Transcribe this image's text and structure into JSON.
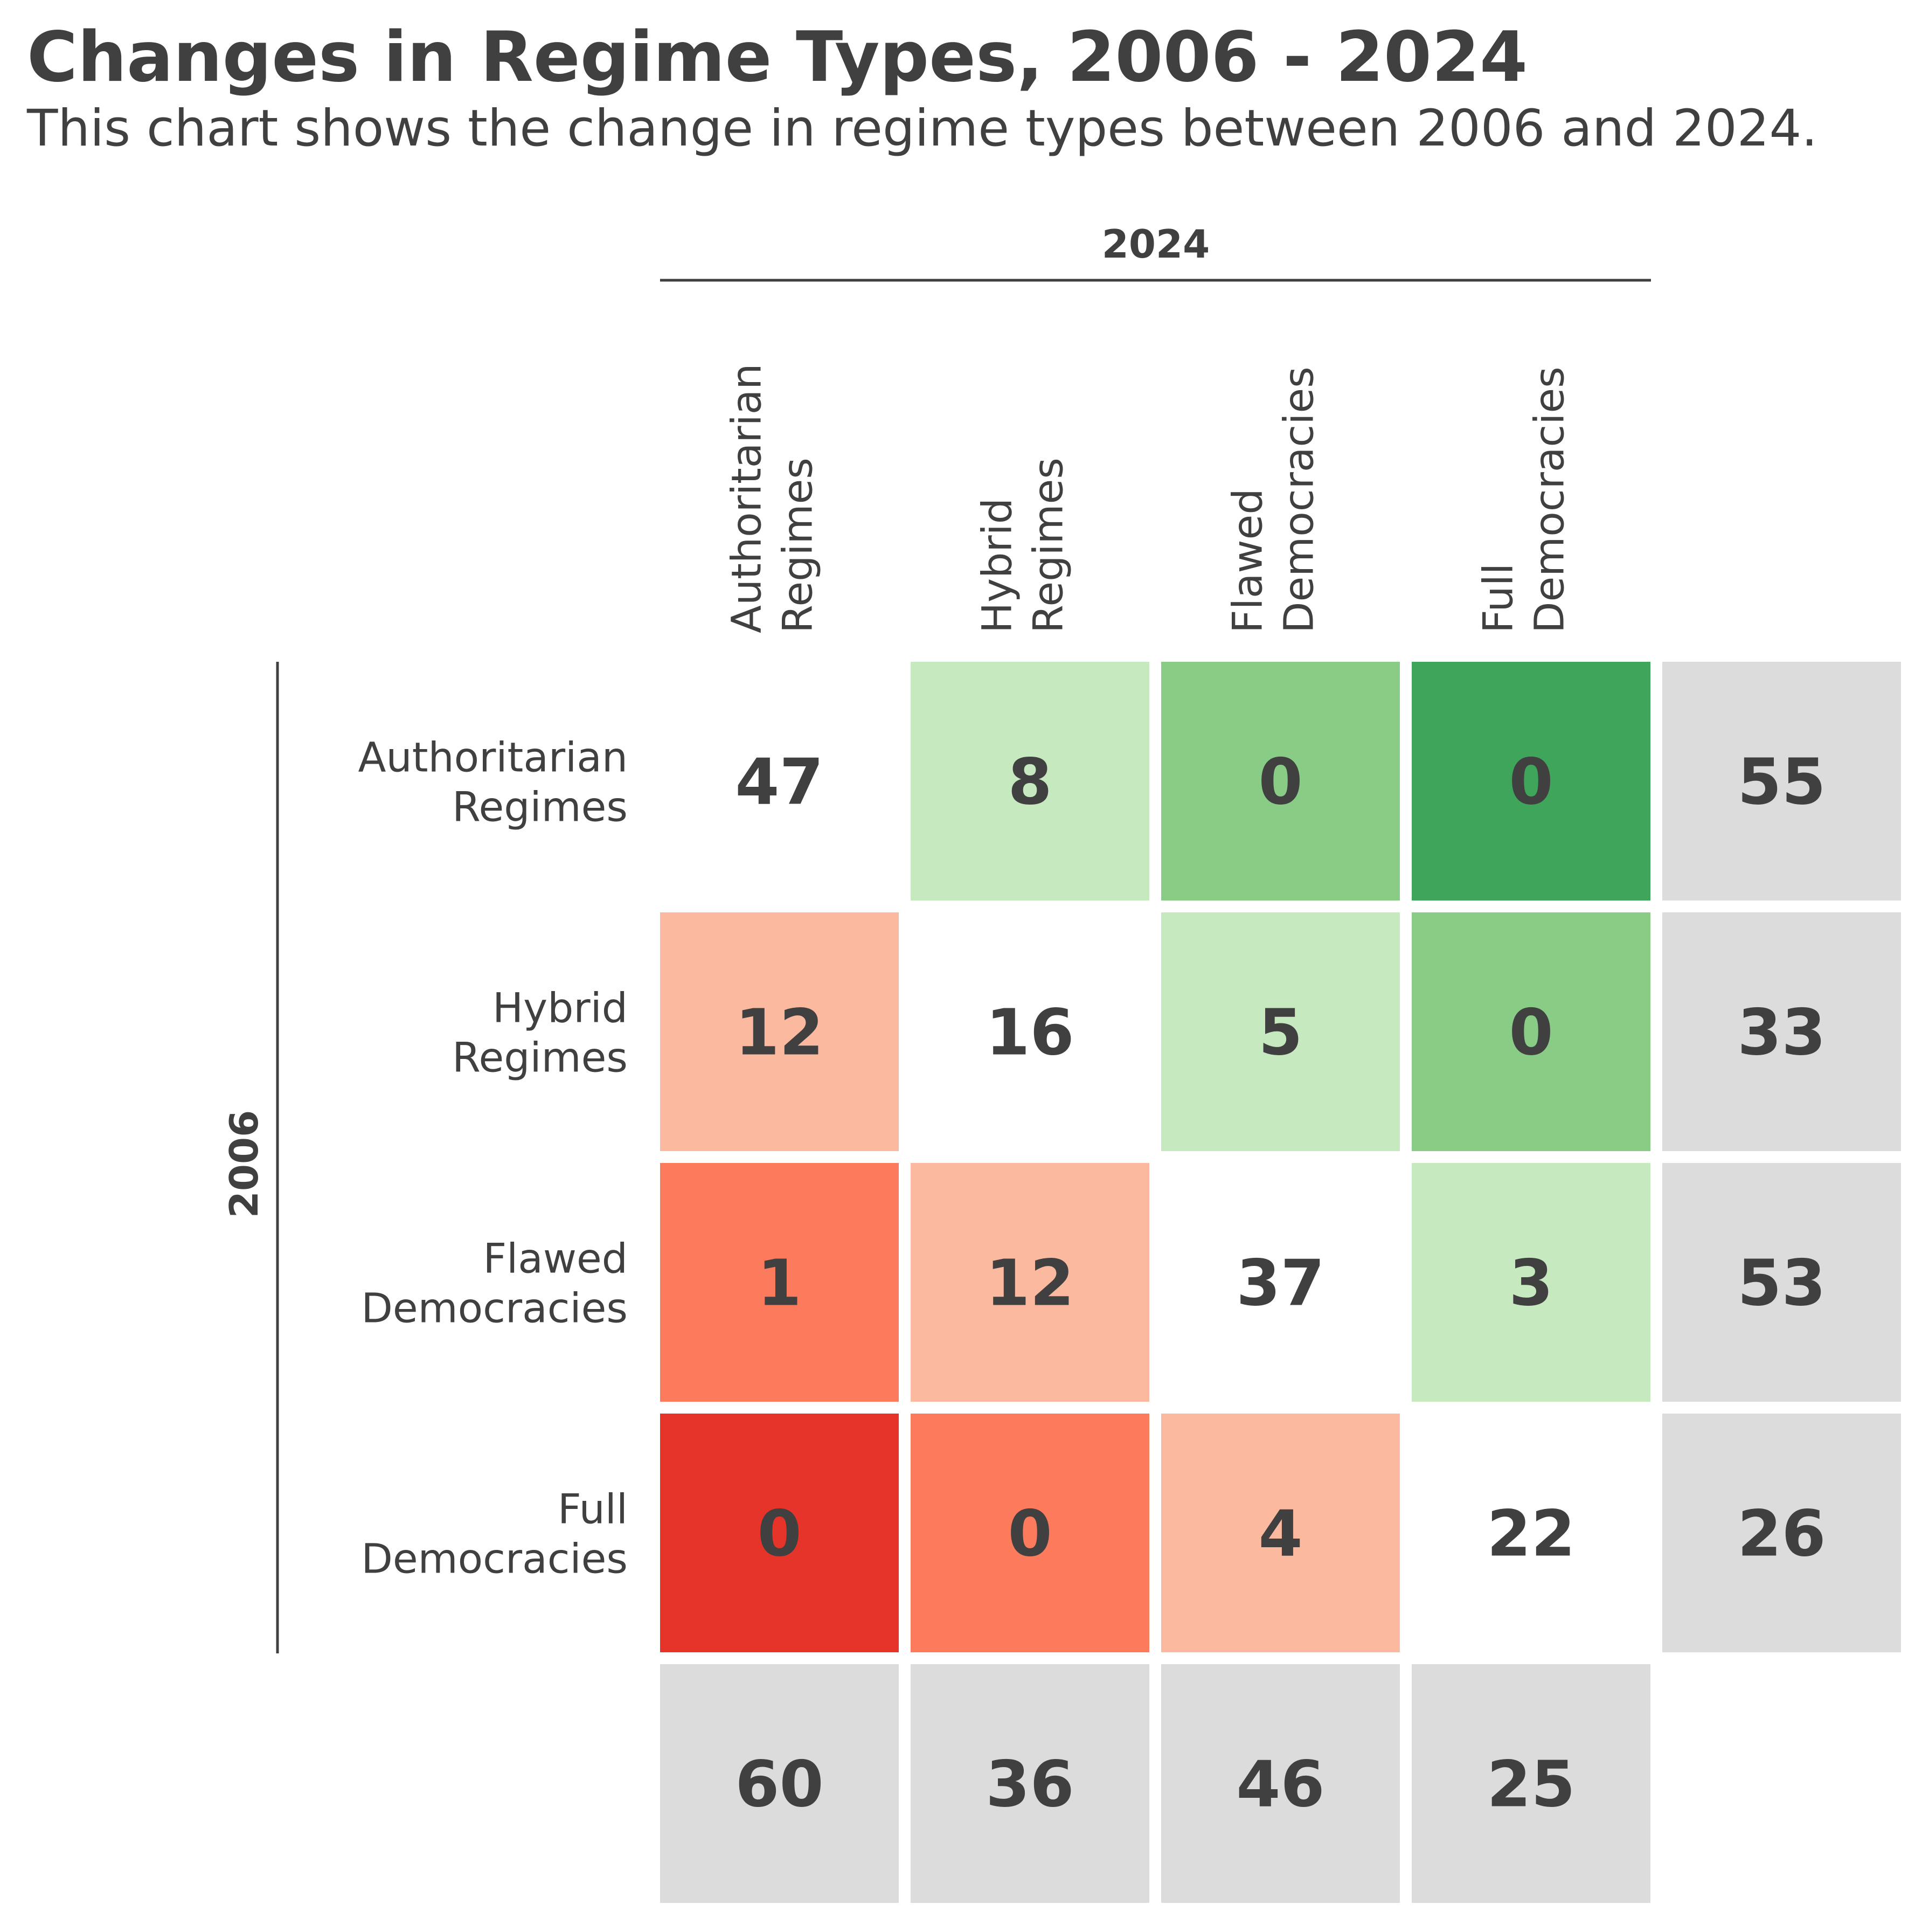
{
  "chart_data": {
    "type": "heatmap",
    "title": "Changes in Regime Types, 2006 - 2024",
    "subtitle": "This chart shows the change in regime types between 2006 and 2024.",
    "xlabel": "2024",
    "ylabel": "2006",
    "columns": [
      [
        "Authoritarian",
        "Regimes"
      ],
      [
        "Hybrid",
        "Regimes"
      ],
      [
        "Flawed",
        "Democracies"
      ],
      [
        "Full",
        "Democracies"
      ]
    ],
    "rows": [
      [
        "Authoritarian",
        "Regimes"
      ],
      [
        "Hybrid",
        "Regimes"
      ],
      [
        "Flawed",
        "Democracies"
      ],
      [
        "Full",
        "Democracies"
      ]
    ],
    "matrix": [
      [
        47,
        8,
        0,
        0
      ],
      [
        12,
        16,
        5,
        0
      ],
      [
        1,
        12,
        37,
        3
      ],
      [
        0,
        0,
        4,
        22
      ]
    ],
    "row_totals": [
      55,
      33,
      53,
      26
    ],
    "column_totals": [
      60,
      36,
      46,
      25
    ],
    "colors": {
      "text": "#404040",
      "diagonal": "#ffffff",
      "totals": "#dcdcdc",
      "improvement_by_step": [
        "#c7e9c0",
        "#88cc85",
        "#3ea55b"
      ],
      "decline_by_step": [
        "#fbb9a0",
        "#fb7b5c",
        "#e7342a"
      ]
    }
  }
}
